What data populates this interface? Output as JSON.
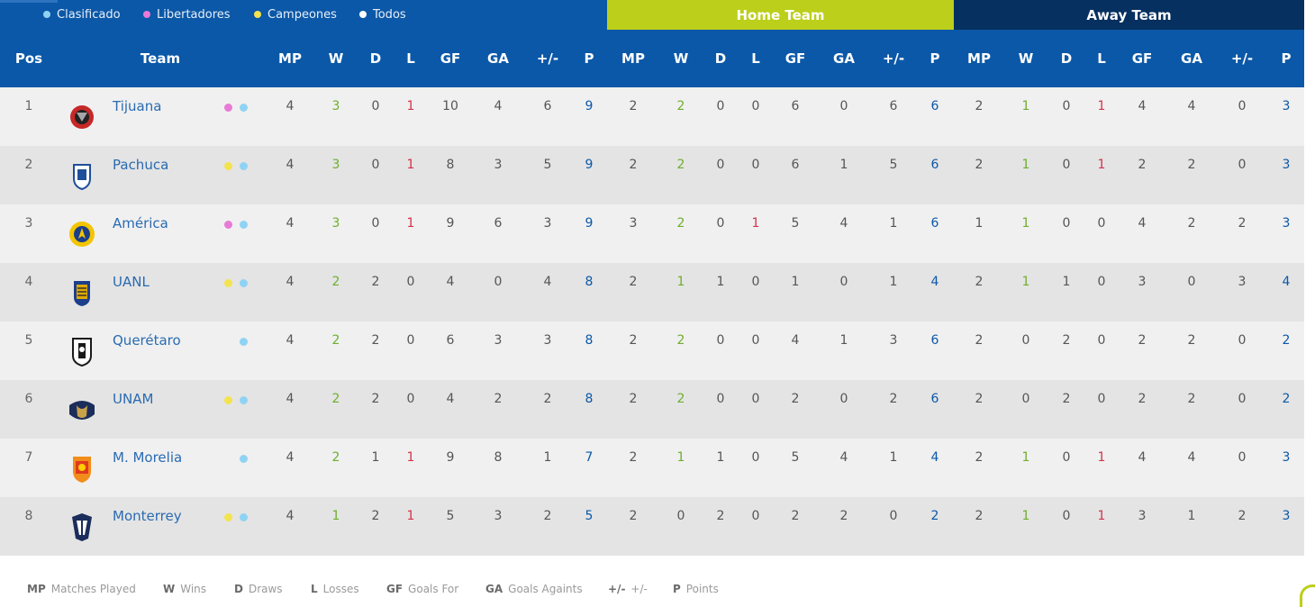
{
  "legend": [
    {
      "label": "Clasificado",
      "color": "#8fd3f4"
    },
    {
      "label": "Libertadores",
      "color": "#e87ad7"
    },
    {
      "label": "Campeones",
      "color": "#f3e34f"
    },
    {
      "label": "Todos",
      "color": "#ffffff"
    }
  ],
  "section_titles": {
    "home": "Home Team",
    "away": "Away Team"
  },
  "headers": {
    "pos": "Pos",
    "team": "Team",
    "overall": [
      "MP",
      "W",
      "D",
      "L",
      "GF",
      "GA",
      "+/-",
      "P"
    ],
    "home": [
      "MP",
      "W",
      "D",
      "L",
      "GF",
      "GA",
      "+/-",
      "P"
    ],
    "away": [
      "MP",
      "W",
      "D",
      "L",
      "GF",
      "GA",
      "+/-",
      "P"
    ]
  },
  "rows": [
    {
      "pos": "1",
      "team": "Tijuana",
      "crest": "tijuana-crest-icon",
      "crest_color": "#c62828",
      "badges": [
        "#e87ad7",
        "#8fd3f4"
      ],
      "overall": [
        "4",
        "3",
        "0",
        "1",
        "10",
        "4",
        "6",
        "9"
      ],
      "home": [
        "2",
        "2",
        "0",
        "0",
        "6",
        "0",
        "6",
        "6"
      ],
      "away": [
        "2",
        "1",
        "0",
        "1",
        "4",
        "4",
        "0",
        "3"
      ]
    },
    {
      "pos": "2",
      "team": "Pachuca",
      "crest": "pachuca-crest-icon",
      "crest_color": "#1f4f9a",
      "badges": [
        "#f3e34f",
        "#8fd3f4"
      ],
      "overall": [
        "4",
        "3",
        "0",
        "1",
        "8",
        "3",
        "5",
        "9"
      ],
      "home": [
        "2",
        "2",
        "0",
        "0",
        "6",
        "1",
        "5",
        "6"
      ],
      "away": [
        "2",
        "1",
        "0",
        "1",
        "2",
        "2",
        "0",
        "3"
      ]
    },
    {
      "pos": "3",
      "team": "América",
      "crest": "america-crest-icon",
      "crest_color": "#f2c500",
      "badges": [
        "#e87ad7",
        "#8fd3f4"
      ],
      "overall": [
        "4",
        "3",
        "0",
        "1",
        "9",
        "6",
        "3",
        "9"
      ],
      "home": [
        "3",
        "2",
        "0",
        "1",
        "5",
        "4",
        "1",
        "6"
      ],
      "away": [
        "1",
        "1",
        "0",
        "0",
        "4",
        "2",
        "2",
        "3"
      ]
    },
    {
      "pos": "4",
      "team": "UANL",
      "crest": "uanl-crest-icon",
      "crest_color": "#e0a800",
      "badges": [
        "#f3e34f",
        "#8fd3f4"
      ],
      "overall": [
        "4",
        "2",
        "2",
        "0",
        "4",
        "0",
        "4",
        "8"
      ],
      "home": [
        "2",
        "1",
        "1",
        "0",
        "1",
        "0",
        "1",
        "4"
      ],
      "away": [
        "2",
        "1",
        "1",
        "0",
        "3",
        "0",
        "3",
        "4"
      ]
    },
    {
      "pos": "5",
      "team": "Querétaro",
      "crest": "queretaro-crest-icon",
      "crest_color": "#1a1a1a",
      "badges": [
        "#8fd3f4"
      ],
      "overall": [
        "4",
        "2",
        "2",
        "0",
        "6",
        "3",
        "3",
        "8"
      ],
      "home": [
        "2",
        "2",
        "0",
        "0",
        "4",
        "1",
        "3",
        "6"
      ],
      "away": [
        "2",
        "0",
        "2",
        "0",
        "2",
        "2",
        "0",
        "2"
      ]
    },
    {
      "pos": "6",
      "team": "UNAM",
      "crest": "unam-crest-icon",
      "crest_color": "#1b2d5a",
      "badges": [
        "#f3e34f",
        "#8fd3f4"
      ],
      "overall": [
        "4",
        "2",
        "2",
        "0",
        "4",
        "2",
        "2",
        "8"
      ],
      "home": [
        "2",
        "2",
        "0",
        "0",
        "2",
        "0",
        "2",
        "6"
      ],
      "away": [
        "2",
        "0",
        "2",
        "0",
        "2",
        "2",
        "0",
        "2"
      ]
    },
    {
      "pos": "7",
      "team": "M. Morelia",
      "crest": "morelia-crest-icon",
      "crest_color": "#f28c1a",
      "badges": [
        "#8fd3f4"
      ],
      "overall": [
        "4",
        "2",
        "1",
        "1",
        "9",
        "8",
        "1",
        "7"
      ],
      "home": [
        "2",
        "1",
        "1",
        "0",
        "5",
        "4",
        "1",
        "4"
      ],
      "away": [
        "2",
        "1",
        "0",
        "1",
        "4",
        "4",
        "0",
        "3"
      ]
    },
    {
      "pos": "8",
      "team": "Monterrey",
      "crest": "monterrey-crest-icon",
      "crest_color": "#1b2d5a",
      "badges": [
        "#f3e34f",
        "#8fd3f4"
      ],
      "overall": [
        "4",
        "1",
        "2",
        "1",
        "5",
        "3",
        "2",
        "5"
      ],
      "home": [
        "2",
        "0",
        "2",
        "0",
        "2",
        "2",
        "0",
        "2"
      ],
      "away": [
        "2",
        "1",
        "0",
        "1",
        "3",
        "1",
        "2",
        "3"
      ]
    }
  ],
  "key": [
    {
      "abbr": "MP",
      "text": "Matches Played"
    },
    {
      "abbr": "W",
      "text": "Wins"
    },
    {
      "abbr": "D",
      "text": "Draws"
    },
    {
      "abbr": "L",
      "text": "Losses"
    },
    {
      "abbr": "GF",
      "text": "Goals For"
    },
    {
      "abbr": "GA",
      "text": "Goals Againts"
    },
    {
      "abbr": "+/-",
      "text": "+/-"
    },
    {
      "abbr": "P",
      "text": "Points"
    }
  ],
  "colors": {
    "header": "#0b58a8",
    "home": "#bccf1a",
    "away": "#05305f",
    "win": "#6fae2e",
    "loss": "#d2334a",
    "points": "#0b58a8"
  }
}
